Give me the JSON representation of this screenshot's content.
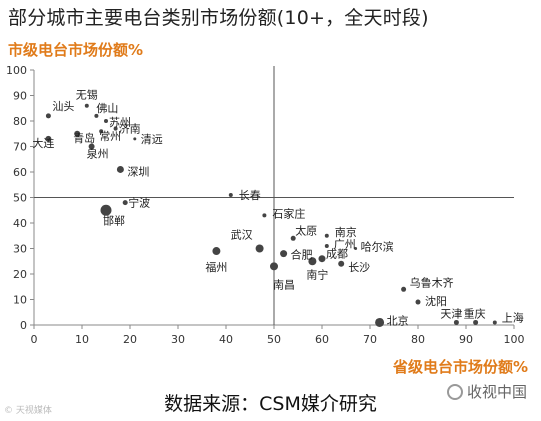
{
  "title": "部分城市主要电台类别市场份额(10+，全天时段)",
  "source": "数据来源：CSM媒介研究",
  "watermark_left": "© 天视媒体",
  "watermark_right": "收视中国",
  "colors": {
    "accent": "#e07b1a",
    "bubble": "#444444",
    "axis": "#888888",
    "cross": "#555555"
  },
  "chart_data": {
    "type": "scatter",
    "xlabel": "省级电台市场份额%",
    "ylabel": "市级电台市场份额%",
    "xlim": [
      0,
      100
    ],
    "ylim": [
      0,
      100
    ],
    "xticks": [
      0,
      10,
      20,
      30,
      40,
      50,
      60,
      70,
      80,
      90,
      100
    ],
    "yticks": [
      0,
      10,
      20,
      30,
      40,
      50,
      60,
      70,
      80,
      90,
      100
    ],
    "crosshair": {
      "x": 50,
      "y": 50
    },
    "points": [
      {
        "label": "无锡",
        "x": 11,
        "y": 86,
        "r": 2.0
      },
      {
        "label": "汕头",
        "x": 3,
        "y": 82,
        "r": 2.5
      },
      {
        "label": "佛山",
        "x": 13,
        "y": 82,
        "r": 2.0
      },
      {
        "label": "苏州",
        "x": 15,
        "y": 80,
        "r": 2.0
      },
      {
        "label": "济南",
        "x": 17,
        "y": 77,
        "r": 2.0
      },
      {
        "label": "常州",
        "x": 14,
        "y": 76,
        "r": 2.0
      },
      {
        "label": "青岛",
        "x": 9,
        "y": 75,
        "r": 3.0
      },
      {
        "label": "清远",
        "x": 21,
        "y": 73,
        "r": 1.5
      },
      {
        "label": "大连",
        "x": 3,
        "y": 73,
        "r": 3.0
      },
      {
        "label": "泉州",
        "x": 12,
        "y": 70,
        "r": 3.0
      },
      {
        "label": "深圳",
        "x": 18,
        "y": 61,
        "r": 3.5
      },
      {
        "label": "长春",
        "x": 41,
        "y": 51,
        "r": 2.0
      },
      {
        "label": "宁波",
        "x": 19,
        "y": 48,
        "r": 2.5
      },
      {
        "label": "邯郸",
        "x": 15,
        "y": 45,
        "r": 5.5
      },
      {
        "label": "石家庄",
        "x": 48,
        "y": 43,
        "r": 2.0
      },
      {
        "label": "南京",
        "x": 61,
        "y": 35,
        "r": 2.0
      },
      {
        "label": "太原",
        "x": 54,
        "y": 34,
        "r": 2.5
      },
      {
        "label": "广州",
        "x": 61,
        "y": 31,
        "r": 2.0
      },
      {
        "label": "哈尔滨",
        "x": 67,
        "y": 30,
        "r": 1.5
      },
      {
        "label": "武汉",
        "x": 47,
        "y": 30,
        "r": 4.0
      },
      {
        "label": "合肥",
        "x": 52,
        "y": 28,
        "r": 3.5
      },
      {
        "label": "福州",
        "x": 38,
        "y": 29,
        "r": 4.0
      },
      {
        "label": "成都",
        "x": 60,
        "y": 26,
        "r": 3.5
      },
      {
        "label": "南宁",
        "x": 58,
        "y": 25,
        "r": 4.0
      },
      {
        "label": "长沙",
        "x": 64,
        "y": 24,
        "r": 3.0
      },
      {
        "label": "南昌",
        "x": 50,
        "y": 23,
        "r": 4.0
      },
      {
        "label": "乌鲁木齐",
        "x": 77,
        "y": 14,
        "r": 2.5
      },
      {
        "label": "沈阳",
        "x": 80,
        "y": 9,
        "r": 2.5
      },
      {
        "label": "北京",
        "x": 72,
        "y": 1,
        "r": 4.5
      },
      {
        "label": "天津",
        "x": 88,
        "y": 1,
        "r": 2.5
      },
      {
        "label": "重庆",
        "x": 92,
        "y": 1,
        "r": 2.5
      },
      {
        "label": "上海",
        "x": 96,
        "y": 1,
        "r": 2.0
      }
    ]
  }
}
